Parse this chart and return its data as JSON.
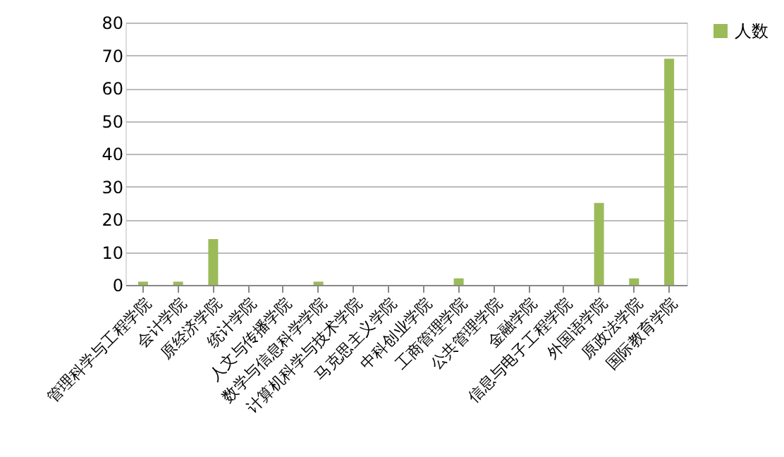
{
  "chart_data": {
    "type": "bar",
    "categories": [
      "管理科学与工程学院",
      "会计学院",
      "原经济学院",
      "统计学院",
      "人文与传播学院",
      "数学与信息科学学院",
      "计算机科学与技术学院",
      "马克思主义学院",
      "中科创业学院",
      "工商管理学院",
      "公共管理学院",
      "金融学院",
      "信息与电子工程学院",
      "外国语学院",
      "原政法学院",
      "国际教育学院"
    ],
    "series": [
      {
        "name": "人数",
        "color": "#9bbb59",
        "values": [
          1,
          1,
          14,
          0,
          0,
          1,
          0,
          0,
          0,
          2,
          0,
          0,
          0,
          25,
          2,
          69
        ]
      }
    ],
    "ylim": [
      0,
      80
    ],
    "yticks": [
      0,
      10,
      20,
      30,
      40,
      50,
      60,
      70,
      80
    ],
    "grid": "y",
    "legend": "right"
  }
}
